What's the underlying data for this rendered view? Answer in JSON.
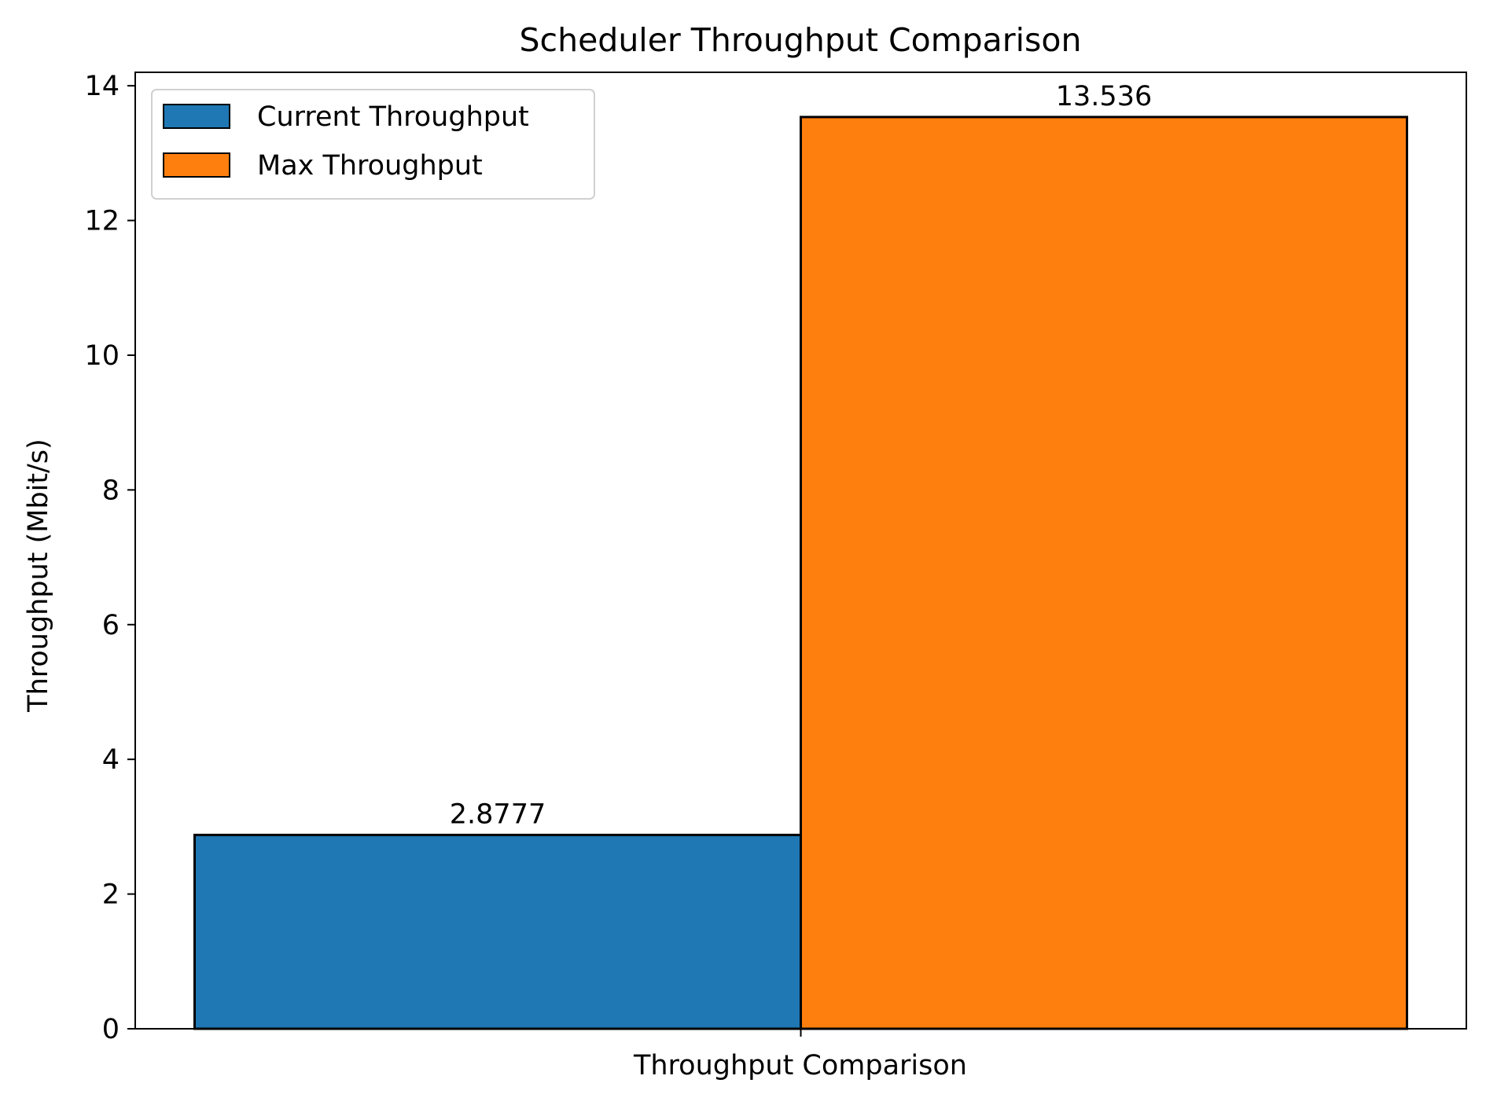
{
  "chart_data": {
    "type": "bar",
    "title": "Scheduler Throughput Comparison",
    "xlabel": "",
    "ylabel": "Throughput (Mbit/s)",
    "categories": [
      "Throughput Comparison"
    ],
    "series": [
      {
        "name": "Current Throughput",
        "values": [
          2.8777
        ],
        "label": "2.8777",
        "color": "#1f77b4"
      },
      {
        "name": "Max Throughput",
        "values": [
          13.536
        ],
        "label": "13.536",
        "color": "#ff7f0e"
      }
    ],
    "ylim": [
      0,
      14.2
    ],
    "yticks": [
      0,
      2,
      4,
      6,
      8,
      10,
      12,
      14
    ],
    "grid": false,
    "legend_position": "top-left"
  }
}
